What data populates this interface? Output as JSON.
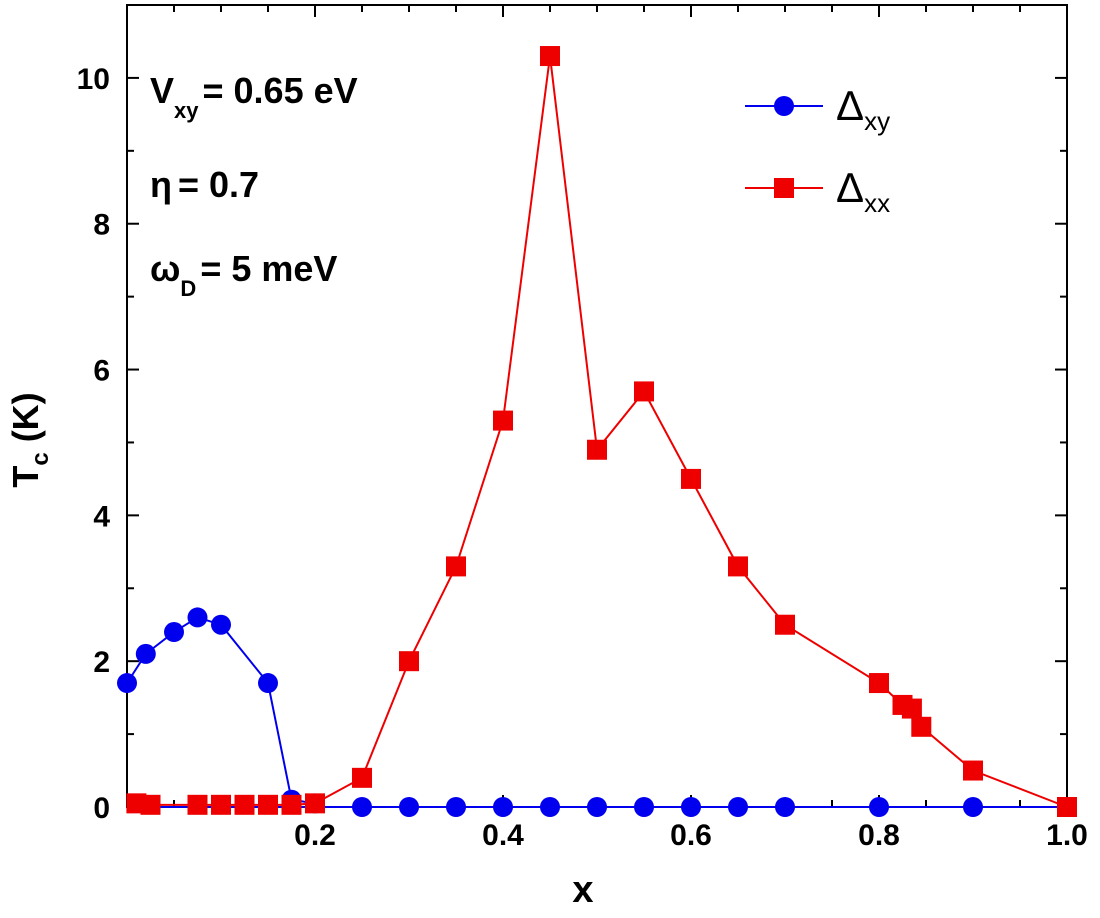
{
  "chart_data": {
    "type": "line",
    "xlabel": "x",
    "ylabel": {
      "main": "T",
      "sub": "c",
      "unit": " (K)"
    },
    "xlim": [
      0.0,
      1.0
    ],
    "ylim": [
      0,
      11
    ],
    "xticks": [
      0.2,
      0.4,
      0.6,
      0.8,
      1.0
    ],
    "xtick_labels": [
      "0.2",
      "0.4",
      "0.6",
      "0.8",
      "1.0"
    ],
    "yticks": [
      0,
      2,
      4,
      6,
      8,
      10
    ],
    "ytick_labels": [
      "0",
      "2",
      "4",
      "6",
      "8",
      "10"
    ],
    "grid": false,
    "legend_position": "top-right",
    "annotations": [
      {
        "main": "V",
        "sub": "xy",
        "rest": "= 0.65 eV"
      },
      {
        "main": "η",
        "sub": "",
        "rest": "= 0.7"
      },
      {
        "main": "ω",
        "sub": "D",
        "rest": "= 5 meV"
      }
    ],
    "series": [
      {
        "name": "Δxy",
        "legend_main": "Δ",
        "legend_sub": "xy",
        "color": "#0000ee",
        "marker": "circle",
        "x": [
          0.0,
          0.02,
          0.05,
          0.075,
          0.1,
          0.15,
          0.175,
          0.2,
          0.25,
          0.3,
          0.35,
          0.4,
          0.45,
          0.5,
          0.55,
          0.6,
          0.65,
          0.7,
          0.8,
          0.9
        ],
        "y": [
          1.7,
          2.1,
          2.4,
          2.6,
          2.5,
          1.7,
          0.1,
          0.05,
          0.0,
          0.0,
          0.0,
          0.0,
          0.0,
          0.0,
          0.0,
          0.0,
          0.0,
          0.0,
          0.0,
          0.0
        ],
        "line_x": [
          0.0,
          1.0
        ],
        "line_y": [
          0.0,
          0.0
        ]
      },
      {
        "name": "Δxx",
        "legend_main": "Δ",
        "legend_sub": "xx",
        "color": "#ee0000",
        "marker": "square",
        "x": [
          0.01,
          0.025,
          0.075,
          0.1,
          0.125,
          0.15,
          0.175,
          0.2,
          0.25,
          0.3,
          0.35,
          0.4,
          0.45,
          0.5,
          0.55,
          0.6,
          0.65,
          0.7,
          0.8,
          0.825,
          0.835,
          0.845,
          0.9,
          1.0
        ],
        "y": [
          0.05,
          0.03,
          0.03,
          0.03,
          0.03,
          0.03,
          0.03,
          0.05,
          0.4,
          2.0,
          3.3,
          5.3,
          10.3,
          4.9,
          5.7,
          4.5,
          3.3,
          2.5,
          1.7,
          1.4,
          1.35,
          1.1,
          0.5,
          0.0
        ]
      }
    ]
  }
}
